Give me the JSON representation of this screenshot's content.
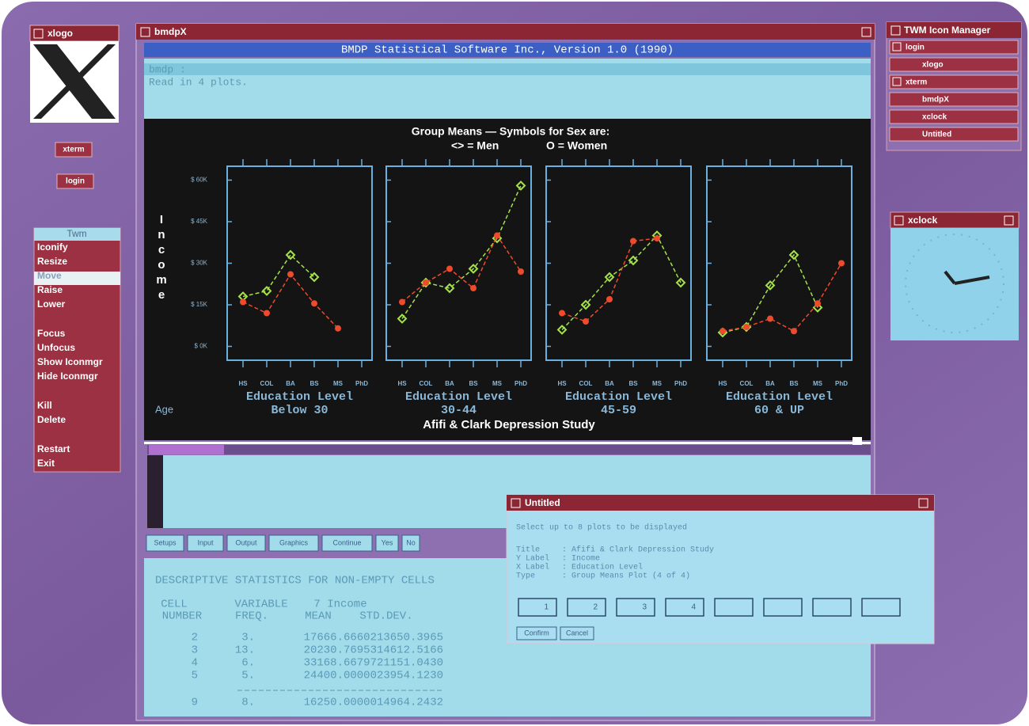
{
  "xlogo": {
    "title": "xlogo"
  },
  "icons": [
    "xterm",
    "login"
  ],
  "twm_menu": {
    "title": "Twm",
    "items": [
      "Iconify",
      "Resize",
      "Move",
      "Raise",
      "Lower",
      "Focus",
      "Unfocus",
      "Show Iconmgr",
      "Hide Iconmgr",
      "Kill",
      "Delete",
      "Restart",
      "Exit"
    ]
  },
  "bmdpx": {
    "title": "bmdpX",
    "banner": "BMDP Statistical Software Inc., Version 1.0 (1990)",
    "prompt": "bmdp :",
    "message": "Read in 4 plots.",
    "plot": {
      "title": "Group Means — Symbols for Sex are:",
      "series": [
        {
          "legend": "<> = Men",
          "color": "#a6e24a",
          "marker": "diamond"
        },
        {
          "legend": "O = Women",
          "color": "#ee4a2c",
          "marker": "circle"
        }
      ],
      "y_label": "Income",
      "x_label": "Education Level",
      "group_label": "Age",
      "footer": "Afifi & Clark Depression Study",
      "categories": [
        "HS",
        "COL",
        "BA",
        "BS",
        "MS",
        "PhD"
      ],
      "ylim": [
        -5000,
        65000
      ],
      "yticks": [
        {
          "value": 60000,
          "label": "$ 60K"
        },
        {
          "value": 45000,
          "label": "$ 45K"
        },
        {
          "value": 30000,
          "label": "$ 30K"
        },
        {
          "value": 15000,
          "label": "$ 15K"
        },
        {
          "value": 0,
          "label": "$ 0K"
        }
      ],
      "panels": [
        {
          "subtitle": "Below 30",
          "values": [
            [
              18000,
              20000,
              33000,
              25000,
              null,
              null
            ],
            [
              16000,
              12000,
              26000,
              15500,
              6500,
              null
            ]
          ]
        },
        {
          "subtitle": "30-44",
          "values": [
            [
              10000,
              23000,
              21000,
              28000,
              39000,
              58000
            ],
            [
              16000,
              23000,
              28000,
              21000,
              40000,
              27000
            ]
          ]
        },
        {
          "subtitle": "45-59",
          "values": [
            [
              6000,
              15000,
              25000,
              31000,
              40000,
              23000
            ],
            [
              12000,
              9000,
              17000,
              38000,
              39000,
              null
            ]
          ]
        },
        {
          "subtitle": "60 & UP",
          "values": [
            [
              5000,
              7000,
              22000,
              33000,
              14000,
              null
            ],
            [
              5500,
              7000,
              10000,
              5500,
              15500,
              30000
            ]
          ]
        }
      ]
    },
    "buttons": [
      "Setups",
      "Input",
      "Output",
      "Graphics",
      "Continue",
      "Yes",
      "No"
    ],
    "output": {
      "heading": "DESCRIPTIVE STATISTICS FOR NON-EMPTY CELLS",
      "header_rows": [
        [
          "CELL",
          "VARIABLE",
          "7 Income"
        ],
        [
          "NUMBER",
          "FREQ.",
          "MEAN",
          "STD.DEV."
        ]
      ],
      "rows": [
        [
          "2",
          "3.",
          "17666.6660213650.3965"
        ],
        [
          "3",
          "13.",
          "20230.7695314612.5166"
        ],
        [
          "4",
          "6.",
          "33168.6679721151.0430"
        ],
        [
          "5",
          "5.",
          "24400.0000023954.1230"
        ]
      ],
      "total": [
        "9",
        "8.",
        "16250.0000014964.2432"
      ]
    }
  },
  "icon_manager": {
    "title": "TWM Icon Manager",
    "entries": [
      "login",
      "xlogo",
      "xterm",
      "bmdpX",
      "xclock",
      "Untitled"
    ]
  },
  "xclock": {
    "title": "xclock"
  },
  "dialog": {
    "title": "Untitled",
    "instruction": "Select up to 8 plots to be displayed",
    "fields": [
      [
        "Title",
        ": Afifi & Clark Depression Study"
      ],
      [
        "Y Label",
        ": Income"
      ],
      [
        "X Label",
        ": Education Level"
      ],
      [
        "Type",
        ": Group Means Plot (4 of 4)"
      ]
    ],
    "slots": [
      "1",
      "2",
      "3",
      "4"
    ],
    "buttons": [
      "Confirm",
      "Cancel"
    ]
  }
}
